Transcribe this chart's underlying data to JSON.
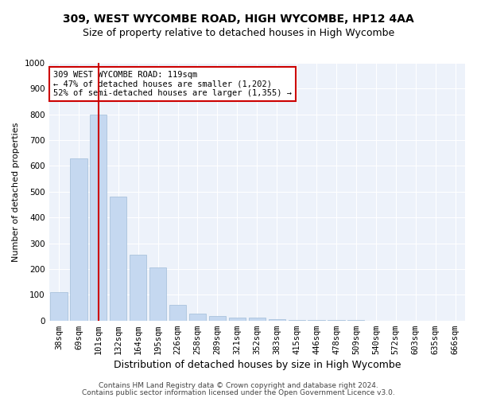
{
  "title1": "309, WEST WYCOMBE ROAD, HIGH WYCOMBE, HP12 4AA",
  "title2": "Size of property relative to detached houses in High Wycombe",
  "xlabel": "Distribution of detached houses by size in High Wycombe",
  "ylabel": "Number of detached properties",
  "categories": [
    "38sqm",
    "69sqm",
    "101sqm",
    "132sqm",
    "164sqm",
    "195sqm",
    "226sqm",
    "258sqm",
    "289sqm",
    "321sqm",
    "352sqm",
    "383sqm",
    "415sqm",
    "446sqm",
    "478sqm",
    "509sqm",
    "540sqm",
    "572sqm",
    "603sqm",
    "635sqm",
    "666sqm"
  ],
  "values": [
    110,
    630,
    800,
    480,
    255,
    205,
    62,
    27,
    18,
    10,
    10,
    5,
    3,
    2,
    1,
    1,
    0,
    0,
    0,
    0,
    0
  ],
  "bar_color": "#c5d8f0",
  "bar_edge_color": "#a0bcd8",
  "vline_x": 2.0,
  "vline_color": "#cc0000",
  "annotation_text": "309 WEST WYCOMBE ROAD: 119sqm\n← 47% of detached houses are smaller (1,202)\n52% of semi-detached houses are larger (1,355) →",
  "annotation_box_color": "#ffffff",
  "annotation_box_edge": "#cc0000",
  "ylim": [
    0,
    1000
  ],
  "yticks": [
    0,
    100,
    200,
    300,
    400,
    500,
    600,
    700,
    800,
    900,
    1000
  ],
  "footer1": "Contains HM Land Registry data © Crown copyright and database right 2024.",
  "footer2": "Contains public sector information licensed under the Open Government Licence v3.0.",
  "bg_color": "#edf2fa",
  "fig_color": "#ffffff",
  "grid_color": "#ffffff",
  "title1_fontsize": 10,
  "title2_fontsize": 9,
  "xlabel_fontsize": 9,
  "ylabel_fontsize": 8,
  "tick_fontsize": 7.5,
  "annotation_fontsize": 7.5,
  "footer_fontsize": 6.5
}
